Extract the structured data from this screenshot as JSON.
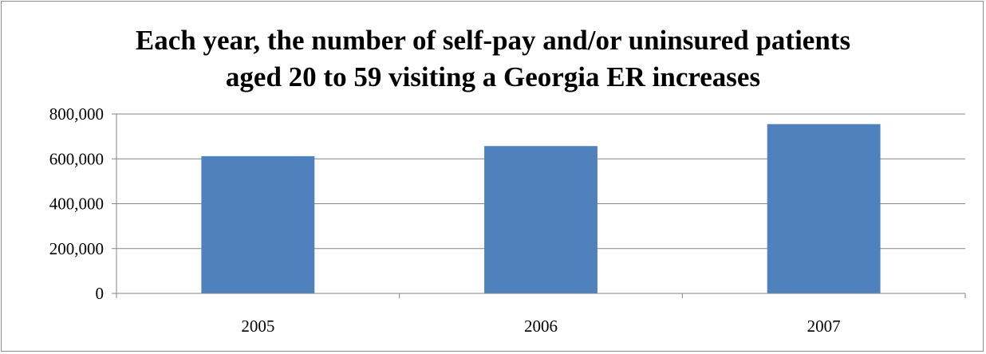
{
  "chart_data": {
    "type": "bar",
    "title_lines": [
      "Each year, the number of self-pay and/or uninsured patients",
      "aged 20 to 59 visiting a Georgia ER increases"
    ],
    "categories": [
      "2005",
      "2006",
      "2007"
    ],
    "values": [
      612000,
      657000,
      755000
    ],
    "ylim": [
      0,
      800000
    ],
    "yticks": [
      0,
      200000,
      400000,
      600000,
      800000
    ],
    "ytick_labels": [
      "0",
      "200,000",
      "400,000",
      "600,000",
      "800,000"
    ],
    "grid": true,
    "legend": "none",
    "bar_color": "#4f81bd",
    "grid_color": "#868686"
  }
}
